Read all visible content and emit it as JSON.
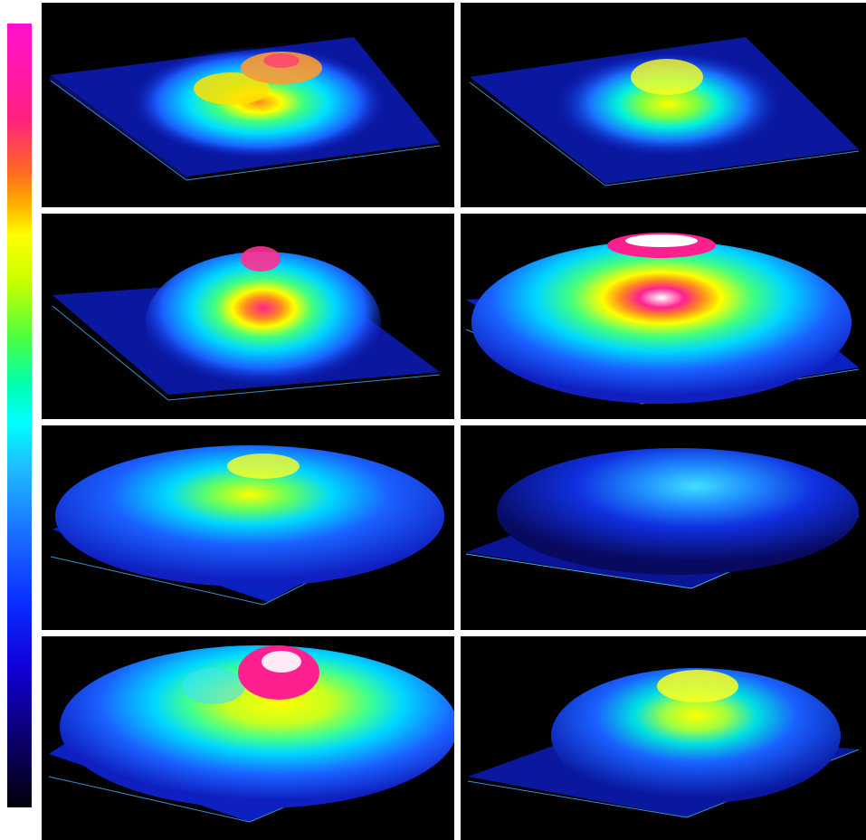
{
  "colorbar": {
    "colors": [
      "#ff10d0",
      "#ff2080",
      "#ff6a20",
      "#ffb000",
      "#ffff00",
      "#c8ff00",
      "#4cff40",
      "#00ffb0",
      "#00ffff",
      "#20b8ff",
      "#1a70ff",
      "#0a2cff",
      "#1000d8",
      "#0c0070",
      "#000008"
    ]
  },
  "panels": [
    {
      "id": "p1",
      "peak_color": "#ff9030",
      "description_icon": "surface-plot"
    },
    {
      "id": "p2",
      "peak_color": "#ffff00",
      "description_icon": "surface-plot"
    },
    {
      "id": "p3",
      "peak_color": "#ff2090",
      "description_icon": "surface-plot"
    },
    {
      "id": "p4",
      "peak_color": "#ffffff",
      "description_icon": "surface-plot"
    },
    {
      "id": "p5",
      "peak_color": "#ffff00",
      "description_icon": "surface-plot"
    },
    {
      "id": "p6",
      "peak_color": "#40ffff",
      "description_icon": "surface-plot"
    },
    {
      "id": "p7",
      "peak_color": "#ffffff",
      "description_icon": "surface-plot"
    },
    {
      "id": "p8",
      "peak_color": "#ffff00",
      "description_icon": "surface-plot"
    }
  ]
}
